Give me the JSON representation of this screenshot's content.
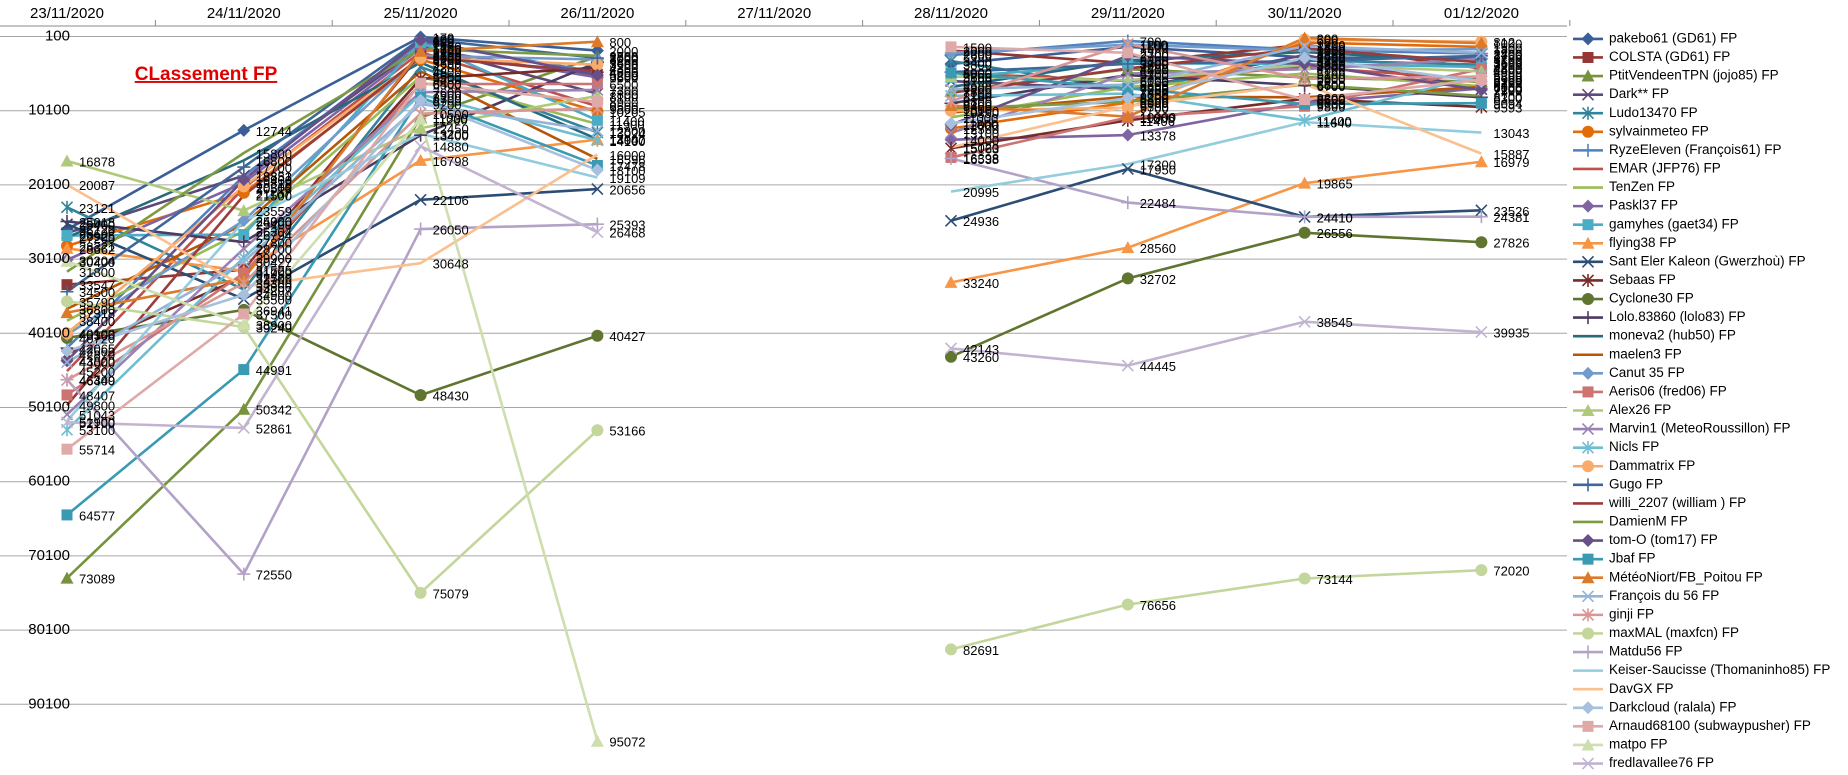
{
  "chart_data": {
    "type": "line",
    "title": "CLassement FP",
    "categories": [
      "23/11/2020",
      "24/11/2020",
      "25/11/2020",
      "26/11/2020",
      "27/11/2020",
      "28/11/2020",
      "29/11/2020",
      "30/11/2020",
      "01/12/2020"
    ],
    "ylim": [
      100,
      100100
    ],
    "y_reversed": true,
    "yticks": [
      100,
      10100,
      20100,
      30100,
      40100,
      50100,
      60100,
      70100,
      80100,
      90100
    ],
    "grid": true,
    "legend": "right",
    "data_labels": true,
    "series": [
      {
        "name": "pakebo61 (GD61) FP",
        "color": "#3A5F98",
        "values": [
          26120,
          12744,
          170,
          2000,
          null,
          3800,
          1500,
          2900,
          3100
        ]
      },
      {
        "name": "COLSTA (GD61) FP",
        "color": "#943634",
        "values": [
          33547,
          31525,
          2500,
          5200,
          null,
          2000,
          3700,
          1200,
          4400
        ]
      },
      {
        "name": "PtitVendeenTPN (jojo85) FP",
        "color": "#76923C",
        "values": [
          73089,
          50342,
          11000,
          2800,
          null,
          7500,
          4500,
          5600,
          6200
        ]
      },
      {
        "name": "Dark** FP",
        "color": "#5F497A",
        "values": [
          26602,
          18851,
          1400,
          7800,
          null,
          6100,
          7255,
          2600,
          7200
        ]
      },
      {
        "name": "Ludo13470 FP",
        "color": "#31849B",
        "values": [
          23121,
          34207,
          4200,
          13024,
          null,
          3400,
          7200,
          3300,
          3900
        ]
      },
      {
        "name": "sylvainmeteo FP",
        "color": "#E36C09",
        "values": [
          28321,
          21167,
          3200,
          10205,
          null,
          12500,
          9000,
          900,
          1500
        ]
      },
      {
        "name": "RyzeEleven (François61) FP",
        "color": "#4F81BD",
        "values": [
          42065,
          18883,
          880,
          4900,
          null,
          2600,
          700,
          1900,
          2400
        ]
      },
      {
        "name": "EMAR (JFP76) FP",
        "color": "#C0504D",
        "values": [
          45200,
          20513,
          2200,
          9500,
          null,
          5000,
          6100,
          4200,
          5900
        ]
      },
      {
        "name": "TenZen  FP",
        "color": "#9BBB59",
        "values": [
          38400,
          26304,
          5500,
          11900,
          null,
          11000,
          6900,
          5100,
          6800
        ]
      },
      {
        "name": "Paskl37 FP",
        "color": "#8064A2",
        "values": [
          30204,
          19818,
          1700,
          5600,
          null,
          14000,
          13378,
          9000,
          7100
        ]
      },
      {
        "name": "gamyhes (gaet34) FP",
        "color": "#4BACC6",
        "values": [
          26925,
          26794,
          900,
          11400,
          null,
          5600,
          3700,
          3800,
          4200
        ]
      },
      {
        "name": "flying38 FP",
        "color": "#F79646",
        "values": [
          28662,
          31700,
          16798,
          14000,
          null,
          33240,
          28560,
          19865,
          16979
        ]
      },
      {
        "name": "Sant Eler Kaleon (Gwerzhoù) FP",
        "color": "#2C4D75",
        "values": [
          25400,
          35500,
          22106,
          20656,
          null,
          24936,
          17950,
          24410,
          23526
        ]
      },
      {
        "name": "Sebaas FP",
        "color": "#772C2A",
        "values": [
          42870,
          32500,
          5800,
          4300,
          null,
          15163,
          11406,
          8500,
          9593
        ]
      },
      {
        "name": "Cyclone30  FP",
        "color": "#5F7530",
        "values": [
          40720,
          36941,
          48430,
          40427,
          null,
          43260,
          32702,
          26556,
          27826
        ]
      },
      {
        "name": "Lolo.83860 (lolo83) FP",
        "color": "#4D3B62",
        "values": [
          25018,
          27800,
          13400,
          3600,
          null,
          9100,
          5300,
          6700,
          8300
        ]
      },
      {
        "name": "moneva2 (hub50) FP",
        "color": "#276A7C",
        "values": [
          27200,
          16800,
          3600,
          13947,
          null,
          6900,
          3300,
          2200,
          3500
        ]
      },
      {
        "name": "maelen3  FP",
        "color": "#B65708",
        "values": [
          36800,
          25400,
          4800,
          16596,
          null,
          10350,
          8200,
          8300,
          6900
        ]
      },
      {
        "name": "Canut 35  FP",
        "color": "#729ACA",
        "values": [
          40300,
          24900,
          2700,
          3200,
          null,
          2300,
          1200,
          2000,
          1800
        ]
      },
      {
        "name": "Aeris06 (fred06) FP",
        "color": "#CD7371",
        "values": [
          48407,
          31999,
          6500,
          6500,
          null,
          16398,
          11000,
          9500,
          4500
        ]
      },
      {
        "name": "Alex26 FP",
        "color": "#AFC97A",
        "values": [
          16878,
          23559,
          12450,
          8100,
          null,
          5500,
          6000,
          3900,
          4800
        ]
      },
      {
        "name": "Marvin1 (MeteoRoussillon) FP",
        "color": "#9983B5",
        "values": [
          51043,
          28700,
          7600,
          7300,
          null,
          13100,
          5100,
          4500,
          3100
        ]
      },
      {
        "name": "Nicls FP",
        "color": "#6FBDD1",
        "values": [
          53100,
          29900,
          7900,
          14100,
          null,
          8100,
          7800,
          11400,
          5300
        ]
      },
      {
        "name": "Dammatrix FP",
        "color": "#F9AB6B",
        "values": [
          40100,
          20300,
          3000,
          3900,
          null,
          10100,
          9700,
          500,
          812
        ]
      },
      {
        "name": "Gugo FP",
        "color": "#3F6797",
        "values": [
          34500,
          17700,
          400,
          3000,
          null,
          4900,
          3800,
          3400,
          2700
        ]
      },
      {
        "name": "willi_2207 (william ) FP",
        "color": "#9A3D3A",
        "values": [
          49800,
          21500,
          2900,
          4800,
          null,
          7700,
          4400,
          1700,
          3600
        ]
      },
      {
        "name": "DamienM FP",
        "color": "#7D9A44",
        "values": [
          31800,
          15800,
          1800,
          2700,
          null,
          9800,
          8900,
          6600,
          8100
        ]
      },
      {
        "name": "tom-O (tom17) FP",
        "color": "#684F88",
        "values": [
          43800,
          19400,
          600,
          5300,
          null,
          12000,
          2700,
          3800,
          7300
        ]
      },
      {
        "name": "Jbaf FP",
        "color": "#3B9AB3",
        "values": [
          64577,
          44991,
          8300,
          17478,
          null,
          5000,
          7085,
          9200,
          9094
        ]
      },
      {
        "name": "MétéoNiort/FB_Poitou FP",
        "color": "#DB7A2A",
        "values": [
          37318,
          32706,
          2100,
          800,
          null,
          9400,
          10900,
          300,
          1000
        ]
      },
      {
        "name": "François du 56 FP",
        "color": "#95B3D7",
        "values": [
          44000,
          30427,
          9200,
          12800,
          null,
          7200,
          6600,
          1400,
          2300
        ]
      },
      {
        "name": "ginji FP",
        "color": "#D99694",
        "values": [
          46400,
          33300,
          10500,
          9800,
          null,
          8800,
          1100,
          5800,
          5500
        ]
      },
      {
        "name": "maxMAL (maxfcn) FP",
        "color": "#C3D69B",
        "values": [
          35790,
          39249,
          75079,
          53166,
          null,
          82691,
          76656,
          73144,
          72020
        ]
      },
      {
        "name": "Matdu56 FP",
        "color": "#B3A2C7",
        "values": [
          46349,
          72550,
          26050,
          25393,
          null,
          16538,
          22484,
          24410,
          24381
        ]
      },
      {
        "name": "Keiser-Saucisse (Thomaninho85) FP",
        "color": "#93CDDD",
        "values": [
          51900,
          25000,
          13200,
          19109,
          null,
          20995,
          17300,
          11640,
          13043
        ]
      },
      {
        "name": "DavGX FP",
        "color": "#FAC090",
        "values": [
          20087,
          33800,
          30648,
          16000,
          null,
          15020,
          9500,
          6500,
          15887
        ]
      },
      {
        "name": "Darkcloud (ralala) FP",
        "color": "#A7C0DE",
        "values": [
          42500,
          34900,
          8700,
          18100,
          null,
          11800,
          8400,
          3000,
          6165
        ]
      },
      {
        "name": "Arnaud68100 (subwaypusher) FP",
        "color": "#DFA9A8",
        "values": [
          55714,
          37500,
          6400,
          8900,
          null,
          1500,
          2300,
          8600,
          5900
        ]
      },
      {
        "name": "matpo FP",
        "color": "#CEDEAE",
        "values": [
          30400,
          38900,
          11200,
          95072,
          null,
          null,
          null,
          null,
          null
        ]
      },
      {
        "name": "fredlavallee76 FP",
        "color": "#C2B4D1",
        "values": [
          52100,
          52861,
          14880,
          26468,
          null,
          42143,
          44445,
          38545,
          39935
        ]
      }
    ]
  }
}
